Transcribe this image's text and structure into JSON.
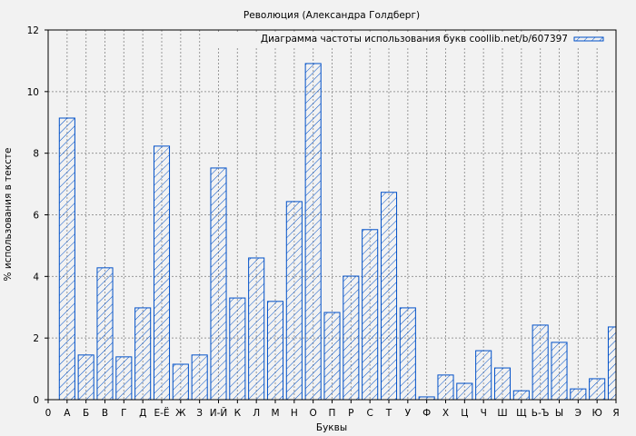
{
  "chart_data": {
    "type": "bar",
    "title": "Революция (Александра Голдберг)",
    "xlabel": "Буквы",
    "ylabel": "% использования в тексте",
    "legend": {
      "label": "Диаграмма частоты использования букв coollib.net/b/607397",
      "placement": "top-right"
    },
    "x_ticks": [
      "0",
      "А",
      "Б",
      "В",
      "Г",
      "Д",
      "Е-Ё",
      "Ж",
      "З",
      "И-Й",
      "К",
      "Л",
      "М",
      "Н",
      "О",
      "П",
      "Р",
      "С",
      "Т",
      "У",
      "Ф",
      "Х",
      "Ц",
      "Ч",
      "Ш",
      "Щ",
      "Ь-Ъ",
      "Ы",
      "Э",
      "Ю",
      "Я"
    ],
    "categories": [
      "А",
      "Б",
      "В",
      "Г",
      "Д",
      "Е-Ё",
      "Ж",
      "З",
      "И-Й",
      "К",
      "Л",
      "М",
      "Н",
      "О",
      "П",
      "Р",
      "С",
      "Т",
      "У",
      "Ф",
      "Х",
      "Ц",
      "Ч",
      "Ш",
      "Щ",
      "Ь-Ъ",
      "Ы",
      "Э",
      "Ю",
      "Я"
    ],
    "values": [
      9.14,
      1.45,
      4.28,
      1.39,
      2.98,
      8.23,
      1.15,
      1.45,
      7.52,
      3.3,
      4.6,
      3.19,
      6.43,
      10.91,
      2.83,
      4.01,
      5.52,
      6.73,
      2.98,
      0.09,
      0.8,
      0.53,
      1.59,
      1.03,
      0.29,
      2.42,
      1.86,
      0.35,
      0.68,
      2.36
    ],
    "y_ticks": [
      "0",
      "2",
      "4",
      "6",
      "8",
      "10",
      "12"
    ],
    "ylim": [
      0,
      12
    ],
    "grid": true,
    "colors": {
      "bar_edge": "#0050c8",
      "background": "#f2f2f2"
    }
  }
}
